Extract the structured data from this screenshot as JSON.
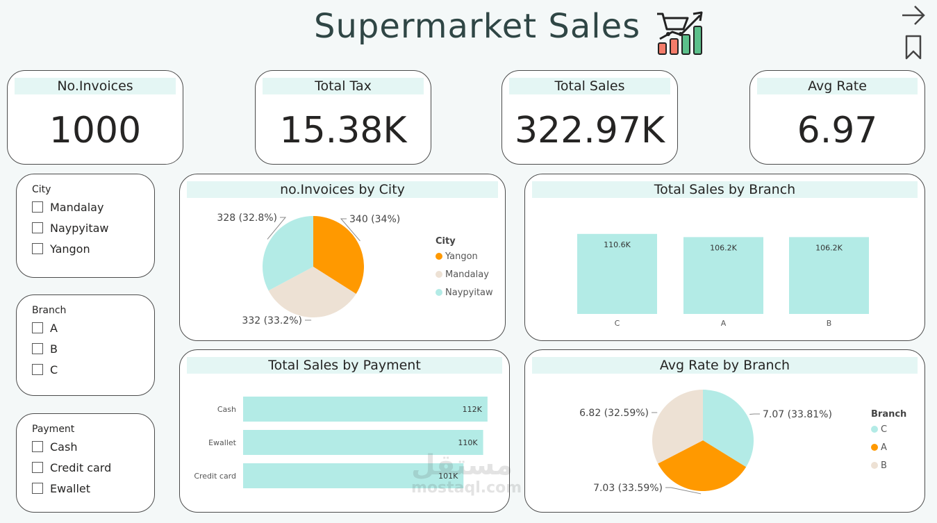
{
  "header": {
    "title": "Supermarket Sales",
    "logo_icon": "shopping-cart-growth-chart-icon",
    "nav_icons": [
      "arrow-right-icon",
      "bookmark-icon"
    ]
  },
  "kpis": [
    {
      "label": "No.Invoices",
      "value": "1000"
    },
    {
      "label": "Total Tax",
      "value": "15.38K"
    },
    {
      "label": "Total Sales",
      "value": "322.97K"
    },
    {
      "label": "Avg Rate",
      "value": "6.97"
    }
  ],
  "slicers": {
    "city": {
      "title": "City",
      "options": [
        "Mandalay",
        "Naypyitaw",
        "Yangon"
      ]
    },
    "branch": {
      "title": "Branch",
      "options": [
        "A",
        "B",
        "C"
      ]
    },
    "payment": {
      "title": "Payment",
      "options": [
        "Cash",
        "Credit card",
        "Ewallet"
      ]
    }
  },
  "colors": {
    "teal": "#b3ebe6",
    "orange": "#ff9900",
    "beige": "#ede1d4",
    "header_bg": "#e4f6f4"
  },
  "watermark": {
    "arabic": "مستقل",
    "latin": "mostaql.com"
  },
  "chart_data": [
    {
      "id": "invoices_by_city",
      "type": "pie",
      "title": "no.Invoices by City",
      "legend_title": "City",
      "legend_position": "right",
      "slices": [
        {
          "label": "Yangon",
          "value": 340,
          "display": "340 (34%)",
          "color": "#ff9900"
        },
        {
          "label": "Mandalay",
          "value": 332,
          "display": "332 (33.2%)",
          "color": "#ede1d4"
        },
        {
          "label": "Naypyitaw",
          "value": 328,
          "display": "328 (32.8%)",
          "color": "#b3ebe6"
        }
      ]
    },
    {
      "id": "sales_by_branch",
      "type": "bar",
      "title": "Total Sales by Branch",
      "categories": [
        "C",
        "A",
        "B"
      ],
      "values": [
        110.6,
        106.2,
        106.2
      ],
      "data_labels": [
        "110.6K",
        "106.2K",
        "106.2K"
      ],
      "ylim": [
        0,
        120
      ],
      "color": "#b3ebe6"
    },
    {
      "id": "sales_by_payment",
      "type": "bar",
      "orientation": "horizontal",
      "title": "Total Sales by Payment",
      "categories": [
        "Cash",
        "Ewallet",
        "Credit card"
      ],
      "values": [
        112,
        110,
        101
      ],
      "data_labels": [
        "112K",
        "110K",
        "101K"
      ],
      "xlim": [
        0,
        120
      ],
      "color": "#b3ebe6"
    },
    {
      "id": "avg_rate_by_branch",
      "type": "pie",
      "title": "Avg Rate by Branch",
      "legend_title": "Branch",
      "legend_position": "right",
      "slices": [
        {
          "label": "C",
          "value": 7.07,
          "display": "7.07 (33.81%)",
          "color": "#b3ebe6"
        },
        {
          "label": "A",
          "value": 7.03,
          "display": "7.03 (33.59%)",
          "color": "#ff9900"
        },
        {
          "label": "B",
          "value": 6.82,
          "display": "6.82 (32.59%)",
          "color": "#ede1d4"
        }
      ]
    }
  ]
}
